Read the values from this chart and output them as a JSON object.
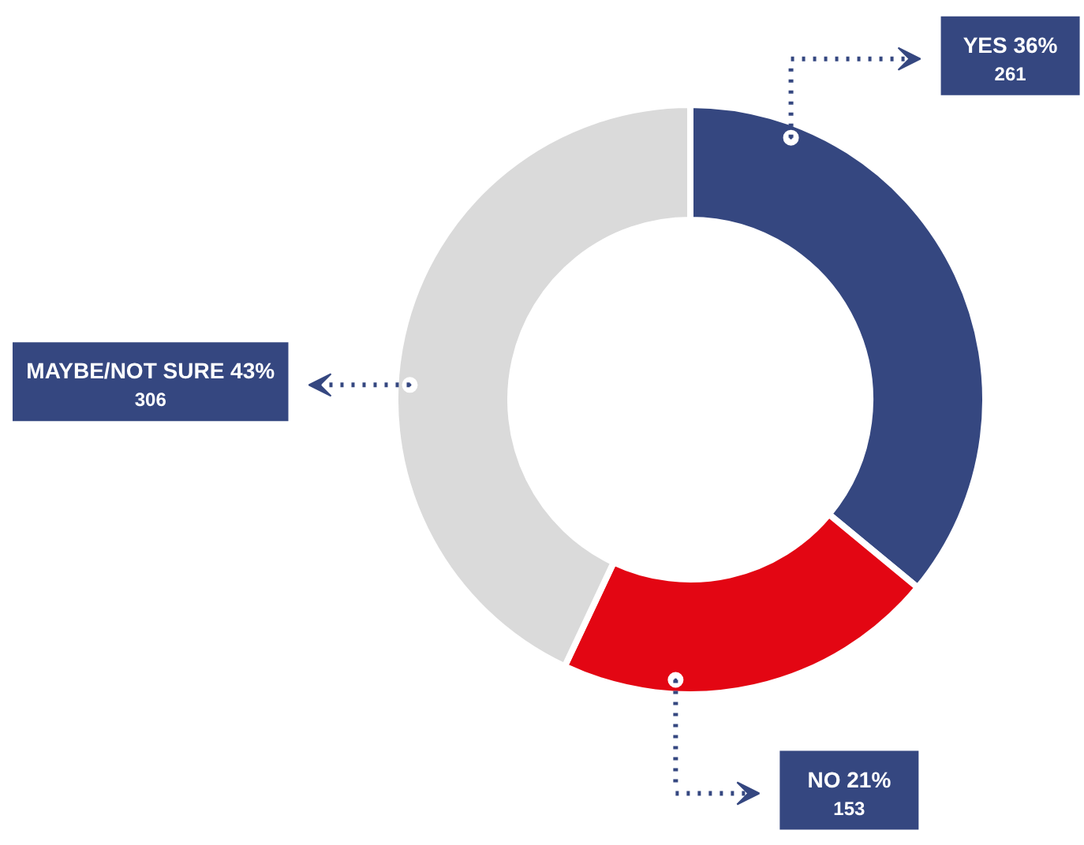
{
  "chart_data": {
    "type": "donut",
    "categories": [
      "YES",
      "NO",
      "MAYBE/NOT SURE"
    ],
    "values": [
      36,
      21,
      43
    ],
    "colors": [
      "#354780",
      "#e30613",
      "#dadada"
    ],
    "value_labels": [
      "36%\n261",
      "21%\n153",
      "43%\n306"
    ]
  }
}
